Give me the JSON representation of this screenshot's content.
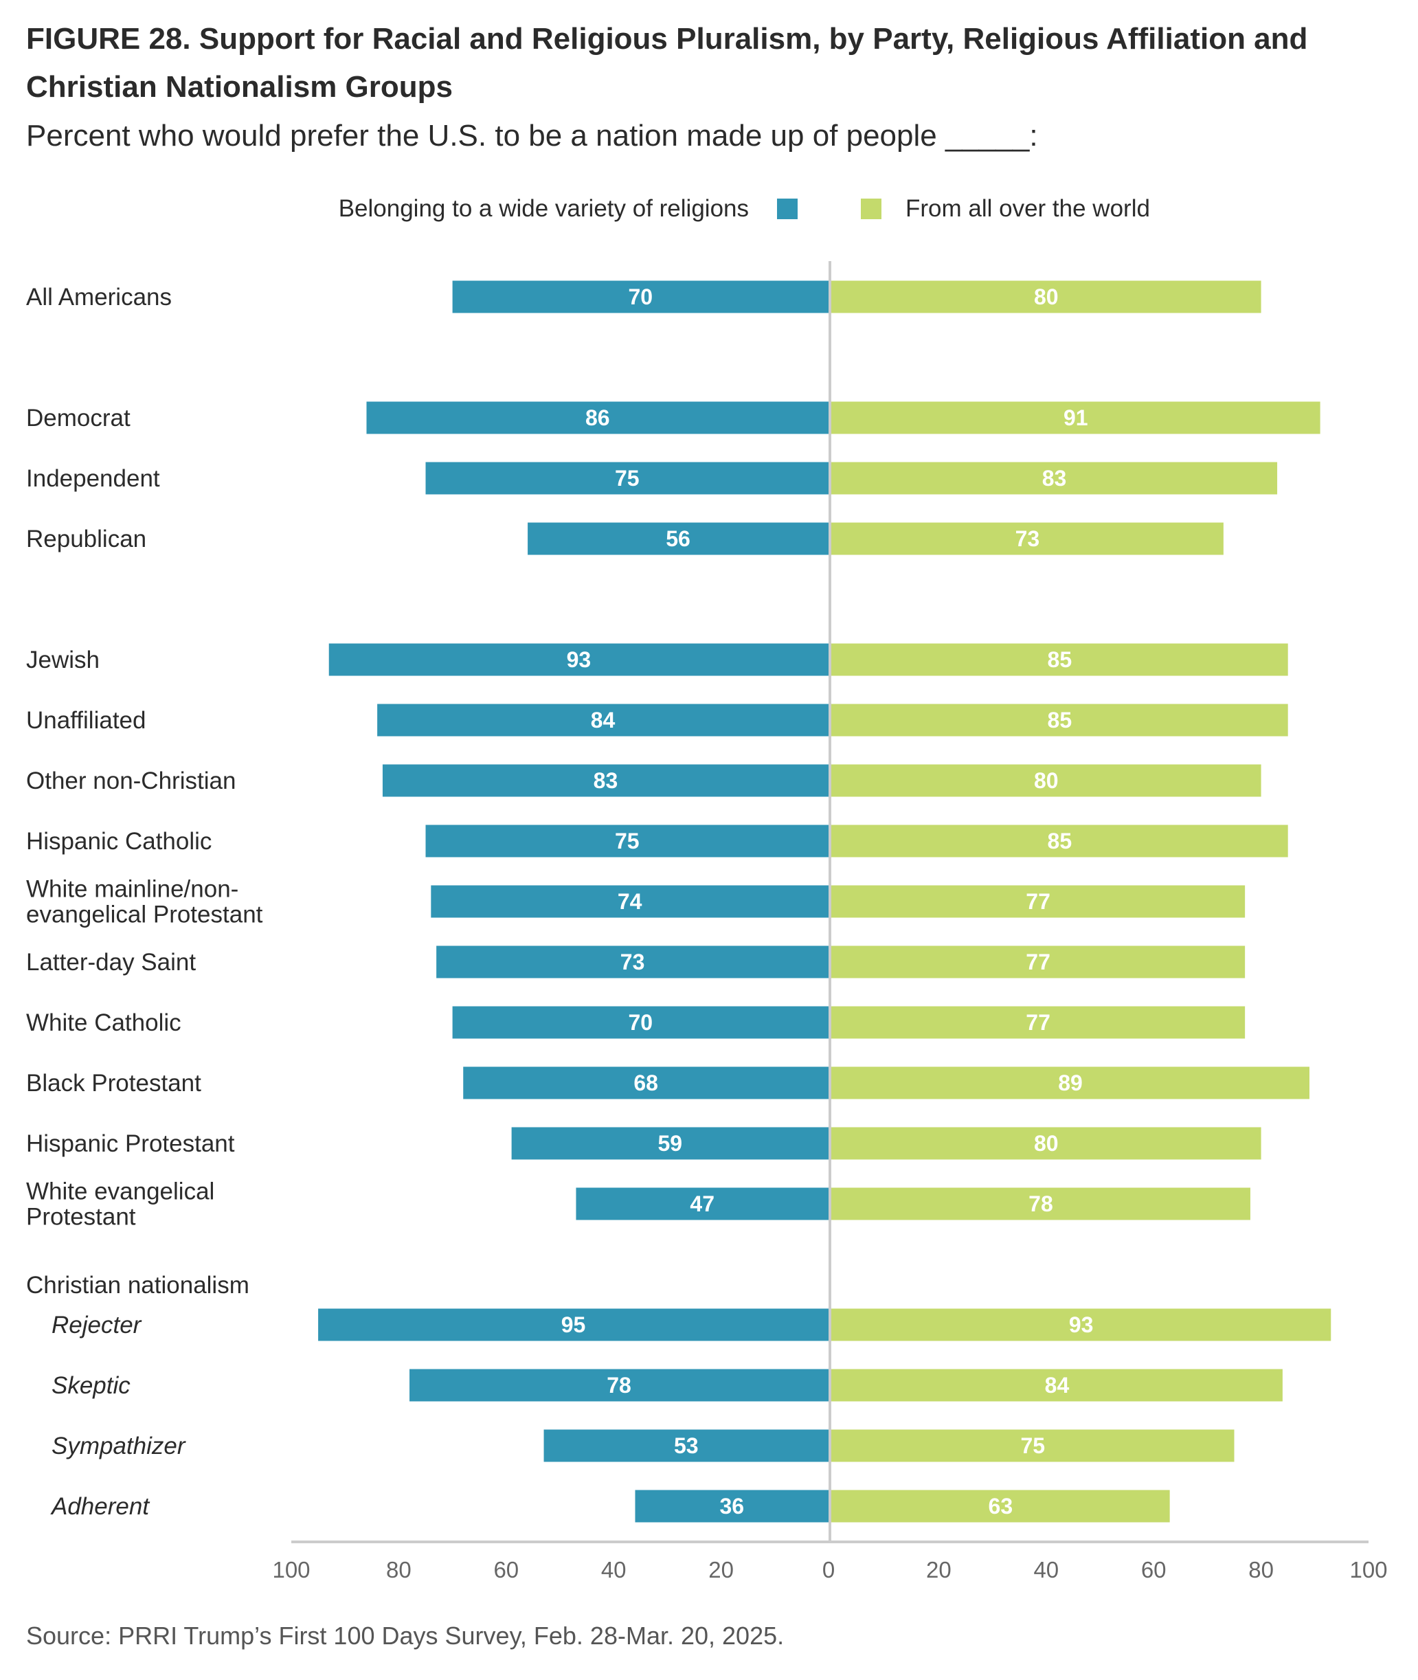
{
  "header": {
    "title": "FIGURE 28.  Support for Racial and Religious Pluralism, by Party, Religious Affiliation and Christian Nationalism Groups",
    "subtitle": "Percent who would prefer the U.S. to be a nation made up of people _____:"
  },
  "source": "Source: PRRI Trump’s First 100 Days Survey, Feb. 28-Mar. 20, 2025.",
  "colors": {
    "religions": "#3195b4",
    "world": "#c4da6c",
    "axis": "#cccccc"
  },
  "chart_data": {
    "type": "bar",
    "orientation": "horizontal-diverging",
    "xlim": [
      -100,
      100
    ],
    "ticks": [
      100,
      80,
      60,
      40,
      20,
      0,
      20,
      40,
      60,
      80,
      100
    ],
    "legend_position": "top-center",
    "series": [
      {
        "name": "Belonging to a wide variety of religions",
        "side": "left"
      },
      {
        "name": "From all over the world",
        "side": "right"
      }
    ],
    "section_headings": [
      {
        "label": "Christian nationalism",
        "before_index": 14
      }
    ],
    "categories": [
      {
        "label": "All Americans",
        "italic": false,
        "religions": 70,
        "world": 80,
        "gap_before": false
      },
      {
        "label": "Democrat",
        "italic": false,
        "religions": 86,
        "world": 91,
        "gap_before": true
      },
      {
        "label": "Independent",
        "italic": false,
        "religions": 75,
        "world": 83,
        "gap_before": false
      },
      {
        "label": "Republican",
        "italic": false,
        "religions": 56,
        "world": 73,
        "gap_before": false
      },
      {
        "label": "Jewish",
        "italic": false,
        "religions": 93,
        "world": 85,
        "gap_before": true
      },
      {
        "label": "Unaffiliated",
        "italic": false,
        "religions": 84,
        "world": 85,
        "gap_before": false
      },
      {
        "label": "Other non-Christian",
        "italic": false,
        "religions": 83,
        "world": 80,
        "gap_before": false
      },
      {
        "label": "Hispanic Catholic",
        "italic": false,
        "religions": 75,
        "world": 85,
        "gap_before": false
      },
      {
        "label": "White mainline/non-\nevangelical Protestant",
        "italic": false,
        "religions": 74,
        "world": 77,
        "gap_before": false
      },
      {
        "label": "Latter-day Saint",
        "italic": false,
        "religions": 73,
        "world": 77,
        "gap_before": false
      },
      {
        "label": "White Catholic",
        "italic": false,
        "religions": 70,
        "world": 77,
        "gap_before": false
      },
      {
        "label": "Black Protestant",
        "italic": false,
        "religions": 68,
        "world": 89,
        "gap_before": false
      },
      {
        "label": "Hispanic Protestant",
        "italic": false,
        "religions": 59,
        "world": 80,
        "gap_before": false
      },
      {
        "label": "White evangelical\nProtestant",
        "italic": false,
        "religions": 47,
        "world": 78,
        "gap_before": false
      },
      {
        "label": "Rejecter",
        "italic": true,
        "religions": 95,
        "world": 93,
        "gap_before": true
      },
      {
        "label": "Skeptic",
        "italic": true,
        "religions": 78,
        "world": 84,
        "gap_before": false
      },
      {
        "label": "Sympathizer",
        "italic": true,
        "religions": 53,
        "world": 75,
        "gap_before": false
      },
      {
        "label": "Adherent",
        "italic": true,
        "religions": 36,
        "world": 63,
        "gap_before": false
      }
    ]
  }
}
